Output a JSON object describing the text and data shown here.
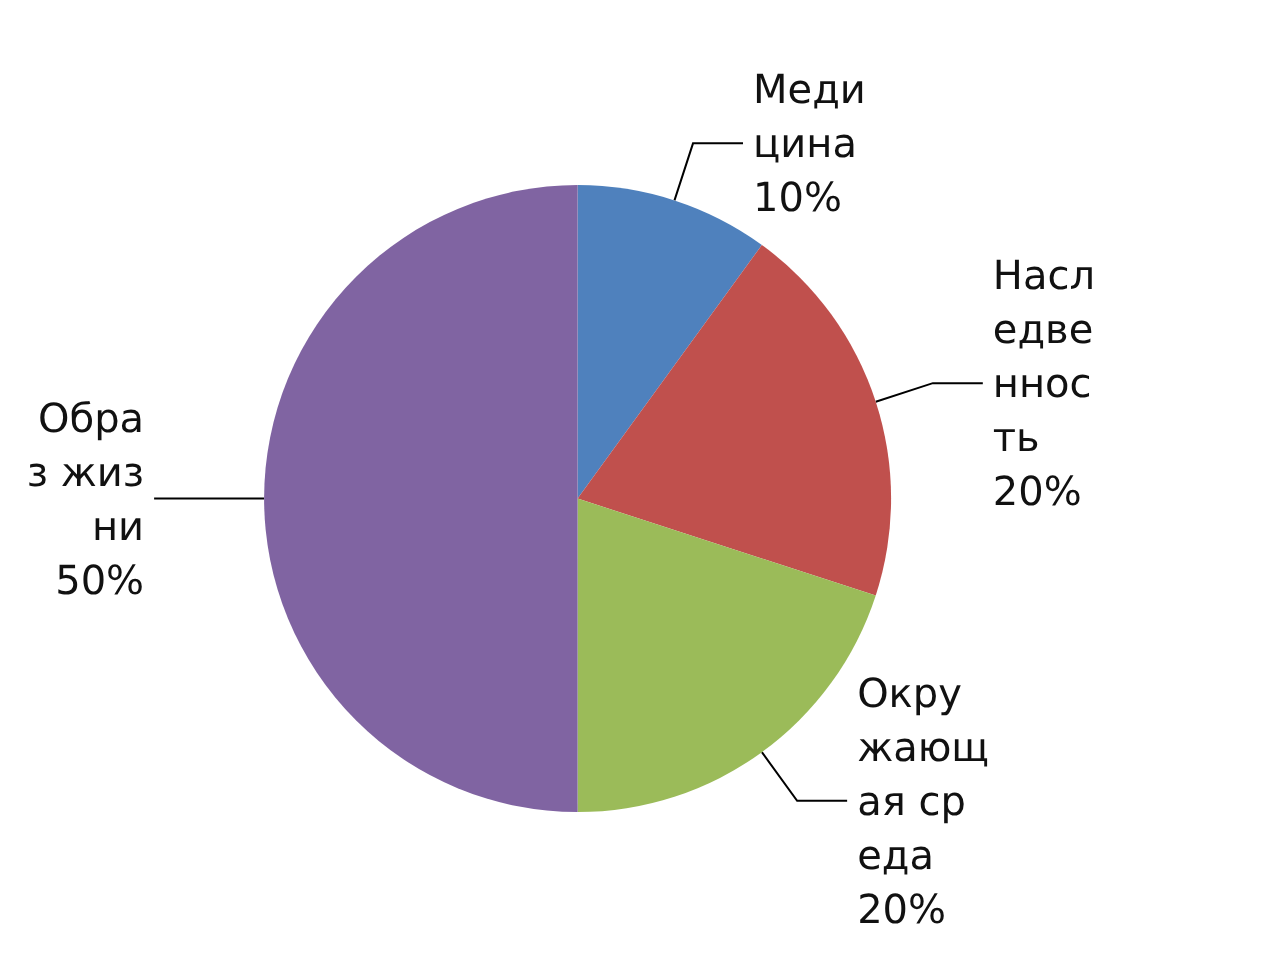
{
  "chart_data": {
    "type": "pie",
    "categories": [
      "Медицина",
      "Наследвенность",
      "Окружающая среда",
      "Образ жизни"
    ],
    "values": [
      10,
      20,
      20,
      50
    ],
    "colors": [
      "#4f81bd",
      "#c0504d",
      "#9bbb59",
      "#8064a2"
    ],
    "value_labels": [
      "10%",
      "20%",
      "20%",
      "50%"
    ],
    "legend": false
  }
}
